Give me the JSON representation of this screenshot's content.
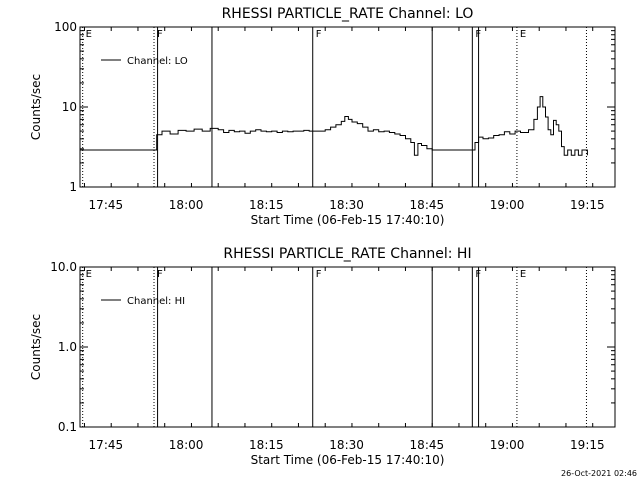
{
  "footer": {
    "timestamp": "26-Oct-2021 02:46"
  },
  "chart_data": [
    {
      "type": "line",
      "title": "RHESSI PARTICLE_RATE Channel: LO",
      "xlabel": "Start Time (06-Feb-15 17:40:10)",
      "ylabel": "Counts/sec",
      "yscale": "log",
      "ylim": [
        1,
        100
      ],
      "xlim": [
        "17:40:10",
        "19:20:10"
      ],
      "x_ticks": [
        "17:45",
        "18:00",
        "18:15",
        "18:30",
        "18:45",
        "19:00",
        "19:15"
      ],
      "y_ticks": [
        "1",
        "10",
        "100"
      ],
      "legend": {
        "entries": [
          "Channel: LO"
        ],
        "placement": "top-left"
      },
      "events": [
        {
          "time": "17:40:40",
          "label": "E",
          "style": "dotted"
        },
        {
          "time": "17:54:00",
          "label": "F",
          "style": "dotted"
        },
        {
          "time": "17:54:40",
          "label": "",
          "style": "solid"
        },
        {
          "time": "18:04:50",
          "label": "",
          "style": "solid"
        },
        {
          "time": "18:23:40",
          "label": "F",
          "style": "solid"
        },
        {
          "time": "18:46:00",
          "label": "",
          "style": "solid"
        },
        {
          "time": "18:53:30",
          "label": "F",
          "style": "solid"
        },
        {
          "time": "18:54:40",
          "label": "",
          "style": "solid"
        },
        {
          "time": "19:01:50",
          "label": "E",
          "style": "dotted"
        },
        {
          "time": "19:14:50",
          "label": "",
          "style": "dotted"
        }
      ],
      "series": [
        {
          "name": "Channel: LO",
          "points": [
            [
              "17:40:10",
              2.9
            ],
            [
              "17:42:10",
              2.9
            ],
            [
              "17:44:10",
              2.9
            ],
            [
              "17:46:10",
              2.9
            ],
            [
              "17:48:10",
              2.9
            ],
            [
              "17:50:10",
              2.9
            ],
            [
              "17:52:10",
              2.9
            ],
            [
              "17:53:30",
              2.9
            ],
            [
              "17:54:30",
              4.5
            ],
            [
              "17:55:30",
              5.0
            ],
            [
              "17:57:00",
              4.6
            ],
            [
              "17:58:30",
              5.1
            ],
            [
              "18:00:00",
              5.0
            ],
            [
              "18:01:30",
              5.3
            ],
            [
              "18:03:00",
              5.0
            ],
            [
              "18:04:30",
              5.4
            ],
            [
              "18:06:00",
              5.2
            ],
            [
              "18:07:00",
              4.8
            ],
            [
              "18:08:00",
              5.1
            ],
            [
              "18:09:00",
              4.9
            ],
            [
              "18:10:00",
              5.0
            ],
            [
              "18:11:00",
              4.7
            ],
            [
              "18:12:00",
              5.0
            ],
            [
              "18:13:00",
              5.2
            ],
            [
              "18:14:00",
              5.0
            ],
            [
              "18:15:00",
              4.9
            ],
            [
              "18:16:00",
              5.0
            ],
            [
              "18:17:00",
              4.8
            ],
            [
              "18:18:00",
              5.0
            ],
            [
              "18:19:00",
              4.9
            ],
            [
              "18:20:00",
              5.0
            ],
            [
              "18:21:00",
              5.0
            ],
            [
              "18:22:00",
              5.1
            ],
            [
              "18:23:00",
              5.0
            ],
            [
              "18:24:00",
              5.0
            ],
            [
              "18:25:00",
              5.0
            ],
            [
              "18:26:00",
              5.2
            ],
            [
              "18:27:00",
              5.6
            ],
            [
              "18:28:00",
              6.0
            ],
            [
              "18:29:00",
              6.6
            ],
            [
              "18:29:40",
              7.6
            ],
            [
              "18:30:20",
              7.0
            ],
            [
              "18:31:00",
              6.5
            ],
            [
              "18:32:00",
              6.2
            ],
            [
              "18:33:00",
              5.6
            ],
            [
              "18:34:00",
              5.0
            ],
            [
              "18:35:00",
              5.2
            ],
            [
              "18:36:00",
              4.9
            ],
            [
              "18:37:00",
              5.0
            ],
            [
              "18:38:00",
              4.8
            ],
            [
              "18:39:00",
              4.6
            ],
            [
              "18:40:00",
              4.4
            ],
            [
              "18:41:00",
              4.0
            ],
            [
              "18:42:00",
              3.6
            ],
            [
              "18:42:40",
              2.5
            ],
            [
              "18:43:20",
              3.5
            ],
            [
              "18:44:00",
              3.3
            ],
            [
              "18:45:00",
              3.0
            ],
            [
              "18:46:00",
              2.9
            ],
            [
              "18:47:00",
              2.9
            ],
            [
              "18:48:00",
              2.9
            ],
            [
              "18:49:00",
              2.9
            ],
            [
              "18:50:00",
              2.9
            ],
            [
              "18:51:00",
              2.9
            ],
            [
              "18:52:00",
              2.9
            ],
            [
              "18:53:00",
              2.9
            ],
            [
              "18:54:00",
              3.6
            ],
            [
              "18:54:40",
              4.2
            ],
            [
              "18:55:30",
              4.0
            ],
            [
              "18:56:30",
              4.1
            ],
            [
              "18:57:30",
              4.4
            ],
            [
              "18:58:30",
              4.5
            ],
            [
              "18:59:30",
              4.9
            ],
            [
              "19:00:30",
              4.6
            ],
            [
              "19:01:30",
              5.0
            ],
            [
              "19:02:30",
              4.8
            ],
            [
              "19:03:30",
              4.8
            ],
            [
              "19:04:00",
              5.2
            ],
            [
              "19:05:00",
              7.0
            ],
            [
              "19:05:40",
              10.0
            ],
            [
              "19:06:10",
              13.5
            ],
            [
              "19:06:40",
              10.0
            ],
            [
              "19:07:10",
              7.5
            ],
            [
              "19:07:40",
              5.2
            ],
            [
              "19:08:10",
              4.5
            ],
            [
              "19:08:40",
              6.8
            ],
            [
              "19:09:10",
              6.0
            ],
            [
              "19:09:40",
              5.0
            ],
            [
              "19:10:10",
              3.2
            ],
            [
              "19:10:40",
              2.5
            ],
            [
              "19:11:20",
              2.9
            ],
            [
              "19:12:00",
              2.5
            ],
            [
              "19:12:40",
              2.9
            ],
            [
              "19:13:20",
              2.5
            ],
            [
              "19:14:00",
              2.9
            ],
            [
              "19:15:00",
              2.5
            ]
          ]
        }
      ]
    },
    {
      "type": "line",
      "title": "RHESSI PARTICLE_RATE Channel: HI",
      "xlabel": "Start Time (06-Feb-15 17:40:10)",
      "ylabel": "Counts/sec",
      "yscale": "log",
      "ylim": [
        0.1,
        10.0
      ],
      "xlim": [
        "17:40:10",
        "19:20:10"
      ],
      "x_ticks": [
        "17:45",
        "18:00",
        "18:15",
        "18:30",
        "18:45",
        "19:00",
        "19:15"
      ],
      "y_ticks": [
        "0.1",
        "1.0",
        "10.0"
      ],
      "legend": {
        "entries": [
          "Channel: HI"
        ],
        "placement": "top-left"
      },
      "events": [
        {
          "time": "17:40:40",
          "label": "E",
          "style": "dotted"
        },
        {
          "time": "17:54:00",
          "label": "F",
          "style": "dotted"
        },
        {
          "time": "17:54:40",
          "label": "",
          "style": "solid"
        },
        {
          "time": "18:04:50",
          "label": "",
          "style": "solid"
        },
        {
          "time": "18:23:40",
          "label": "F",
          "style": "solid"
        },
        {
          "time": "18:46:00",
          "label": "",
          "style": "solid"
        },
        {
          "time": "18:53:30",
          "label": "F",
          "style": "solid"
        },
        {
          "time": "18:54:40",
          "label": "",
          "style": "solid"
        },
        {
          "time": "19:01:50",
          "label": "E",
          "style": "dotted"
        },
        {
          "time": "19:14:50",
          "label": "",
          "style": "dotted"
        }
      ],
      "series": [
        {
          "name": "Channel: HI",
          "points": []
        }
      ]
    }
  ]
}
